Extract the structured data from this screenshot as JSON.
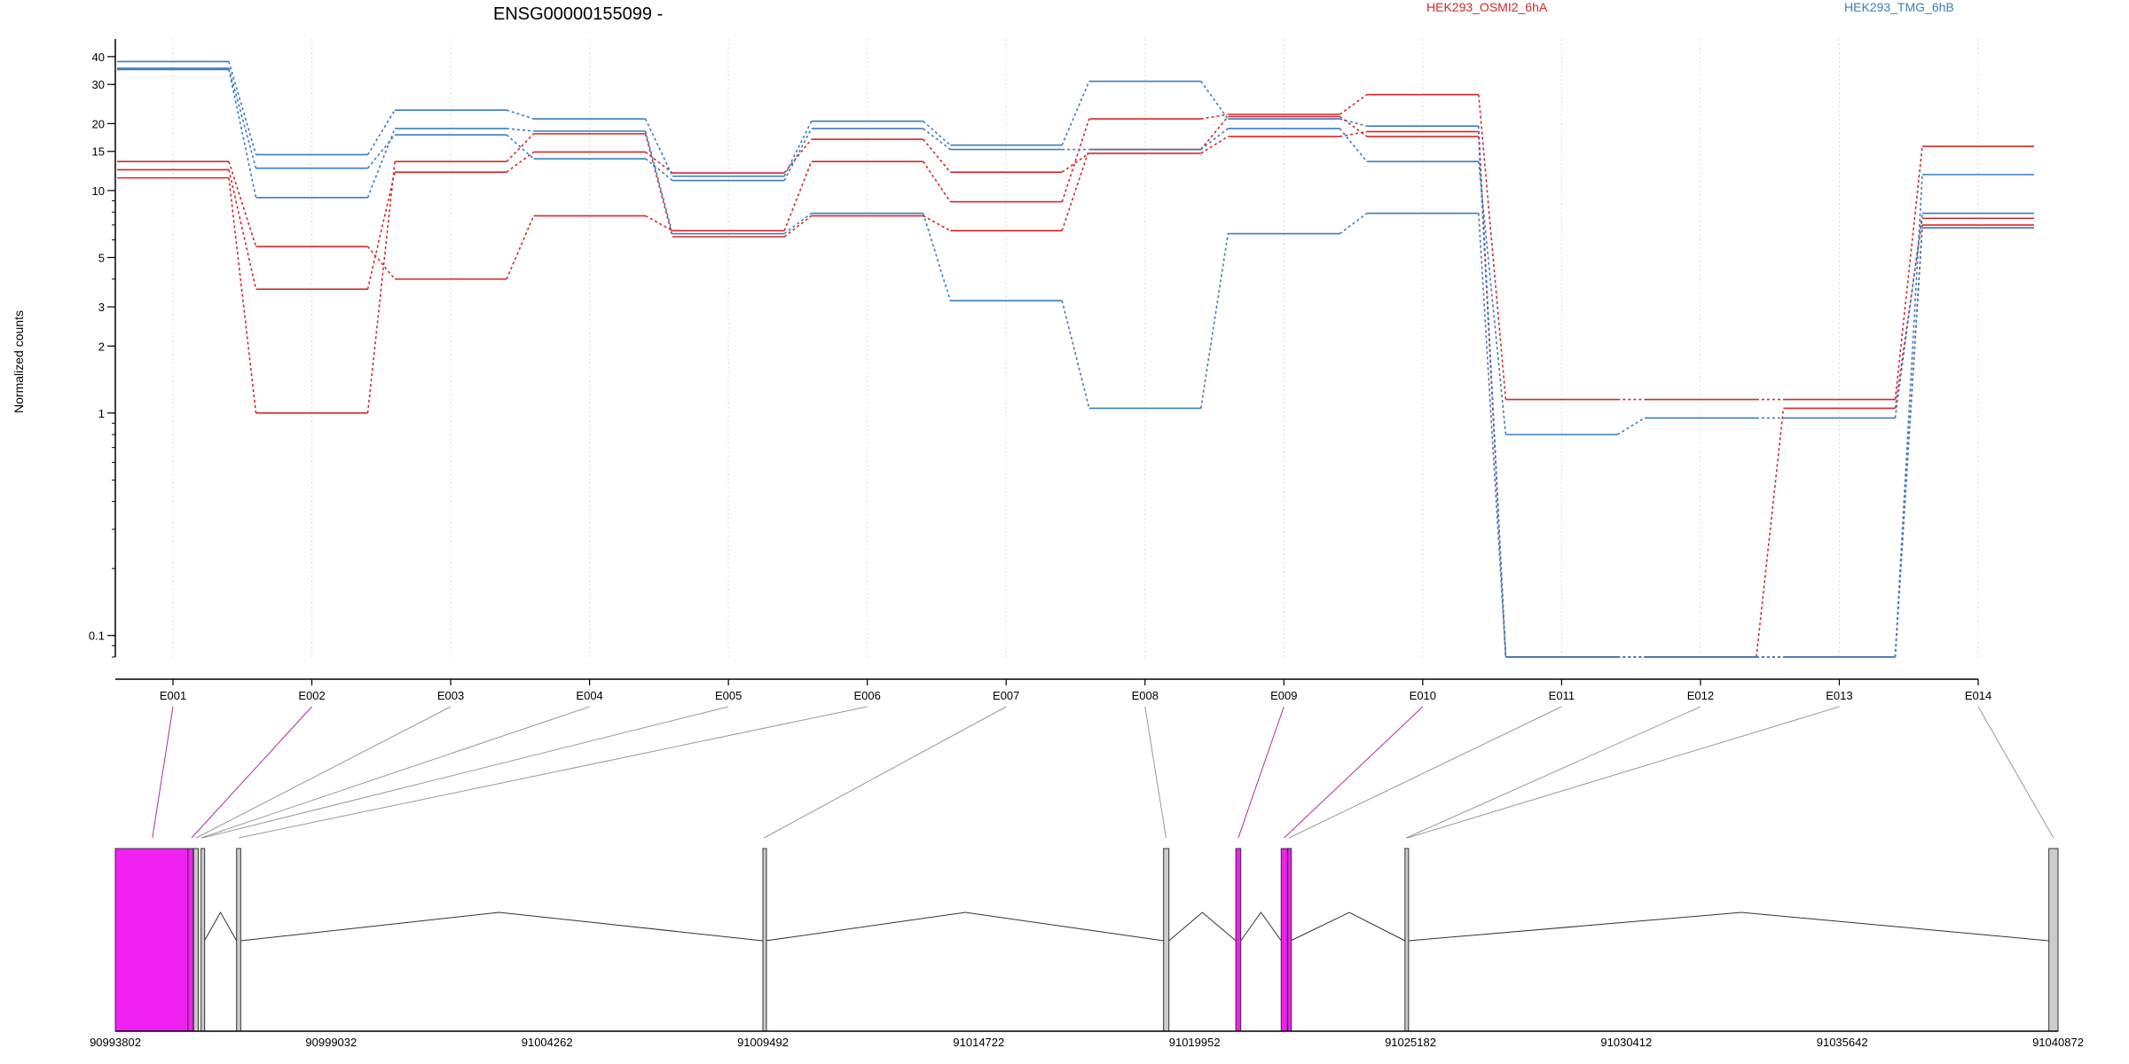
{
  "chart_data": {
    "type": "line",
    "title": "ENSG00000155099 -",
    "ylabel": "Normalized counts",
    "yscale": "log",
    "ylim": [
      0.08,
      48
    ],
    "yticks": [
      0.1,
      1,
      2,
      3,
      5,
      10,
      15,
      20,
      30,
      40
    ],
    "ytick_labels": [
      "0.1",
      "1",
      "2",
      "3",
      "5",
      "10",
      "15",
      "20",
      "30",
      "40"
    ],
    "grid": "vertical dotted at each exon",
    "legend_placement": "top",
    "categories": [
      "E001",
      "E002",
      "E003",
      "E004",
      "E005",
      "E006",
      "E007",
      "E008",
      "E009",
      "E010",
      "E011",
      "E012",
      "E013",
      "E014"
    ],
    "legend": [
      {
        "label": "HEK293_OSMI2_6hA",
        "color": "#d62728"
      },
      {
        "label": "HEK293_TMG_6hB",
        "color": "#3a7dbf"
      }
    ],
    "series": [
      {
        "group": 0,
        "color": "#d62728",
        "values": [
          13.5,
          5.6,
          4.0,
          7.7,
          6.6,
          13.5,
          8.9,
          21.0,
          22.0,
          27.0,
          1.15,
          1.15,
          1.15,
          15.8
        ]
      },
      {
        "group": 0,
        "color": "#d62728",
        "values": [
          12.4,
          3.6,
          12.1,
          14.9,
          12.0,
          17.0,
          12.1,
          14.7,
          17.5,
          18.4,
          0.08,
          0.08,
          0.08,
          7.0
        ]
      },
      {
        "group": 0,
        "color": "#d62728",
        "values": [
          11.4,
          1.0,
          13.5,
          18.0,
          6.2,
          7.7,
          6.6,
          15.3,
          21.5,
          17.5,
          0.08,
          0.08,
          1.05,
          7.5
        ]
      },
      {
        "group": 1,
        "color": "#3a7dbf",
        "values": [
          38.0,
          14.5,
          23.0,
          21.0,
          11.6,
          20.5,
          16.0,
          31.0,
          21.0,
          19.5,
          0.08,
          0.08,
          0.08,
          11.8
        ]
      },
      {
        "group": 1,
        "color": "#3a7dbf",
        "values": [
          35.5,
          12.6,
          17.8,
          13.9,
          11.1,
          19.0,
          15.3,
          15.3,
          19.0,
          13.5,
          0.8,
          0.95,
          0.95,
          7.9
        ]
      },
      {
        "group": 1,
        "color": "#3a7dbf",
        "values": [
          35.0,
          9.3,
          19.0,
          18.5,
          6.4,
          7.9,
          3.2,
          1.05,
          6.4,
          7.9,
          0.08,
          0.08,
          0.08,
          6.8
        ]
      }
    ],
    "gene_model": {
      "coordinate_labels": [
        "90993802",
        "90999032",
        "91004262",
        "91009492",
        "91014722",
        "91019952",
        "91025182",
        "91030412",
        "91035642",
        "91040872"
      ],
      "coordinate_range": [
        90993802,
        91040872
      ],
      "exons": [
        {
          "start": 90993802,
          "end": 90995560,
          "highlight": true
        },
        {
          "start": 90995560,
          "end": 90995690,
          "highlight": true
        },
        {
          "start": 90995700,
          "end": 90995810,
          "highlight": false
        },
        {
          "start": 90995880,
          "end": 90995960,
          "highlight": false
        },
        {
          "start": 90996740,
          "end": 90996840,
          "highlight": false
        },
        {
          "start": 91009492,
          "end": 91009560,
          "highlight": false
        },
        {
          "start": 91019200,
          "end": 91019330,
          "highlight": false
        },
        {
          "start": 91020950,
          "end": 91021070,
          "highlight": true
        },
        {
          "start": 91022050,
          "end": 91022200,
          "highlight": true
        },
        {
          "start": 91022210,
          "end": 91022280,
          "highlight": true
        },
        {
          "start": 91025050,
          "end": 91025130,
          "highlight": false
        },
        {
          "start": 91040650,
          "end": 91040872,
          "highlight": false
        }
      ],
      "exon_links": [
        {
          "exon": "E001",
          "target": 90994700,
          "highlight": true
        },
        {
          "exon": "E002",
          "target": 90995650,
          "highlight": true
        },
        {
          "exon": "E003",
          "target": 90995760,
          "highlight": false
        },
        {
          "exon": "E004",
          "target": 90995880,
          "highlight": false
        },
        {
          "exon": "E005",
          "target": 90995920,
          "highlight": false
        },
        {
          "exon": "E006",
          "target": 90996790,
          "highlight": false
        },
        {
          "exon": "E007",
          "target": 91009520,
          "highlight": false
        },
        {
          "exon": "E008",
          "target": 91019260,
          "highlight": false
        },
        {
          "exon": "E009",
          "target": 91021010,
          "highlight": true
        },
        {
          "exon": "E010",
          "target": 91022120,
          "highlight": true
        },
        {
          "exon": "E011",
          "target": 91022240,
          "highlight": false
        },
        {
          "exon": "E012",
          "target": 91025080,
          "highlight": false
        },
        {
          "exon": "E013",
          "target": 91025110,
          "highlight": false
        },
        {
          "exon": "E014",
          "target": 91040760,
          "highlight": false
        }
      ],
      "introns": [
        {
          "from": 90995960,
          "to": 90996740,
          "peak": 90996350
        },
        {
          "from": 90996840,
          "to": 91009492,
          "peak": 91003100
        },
        {
          "from": 91009560,
          "to": 91019200,
          "peak": 91014400
        },
        {
          "from": 91019330,
          "to": 91020950,
          "peak": 91020140
        },
        {
          "from": 91021070,
          "to": 91022050,
          "peak": 91021560
        },
        {
          "from": 91022280,
          "to": 91025050,
          "peak": 91023700
        },
        {
          "from": 91025130,
          "to": 91040650,
          "peak": 91033200
        }
      ]
    }
  }
}
